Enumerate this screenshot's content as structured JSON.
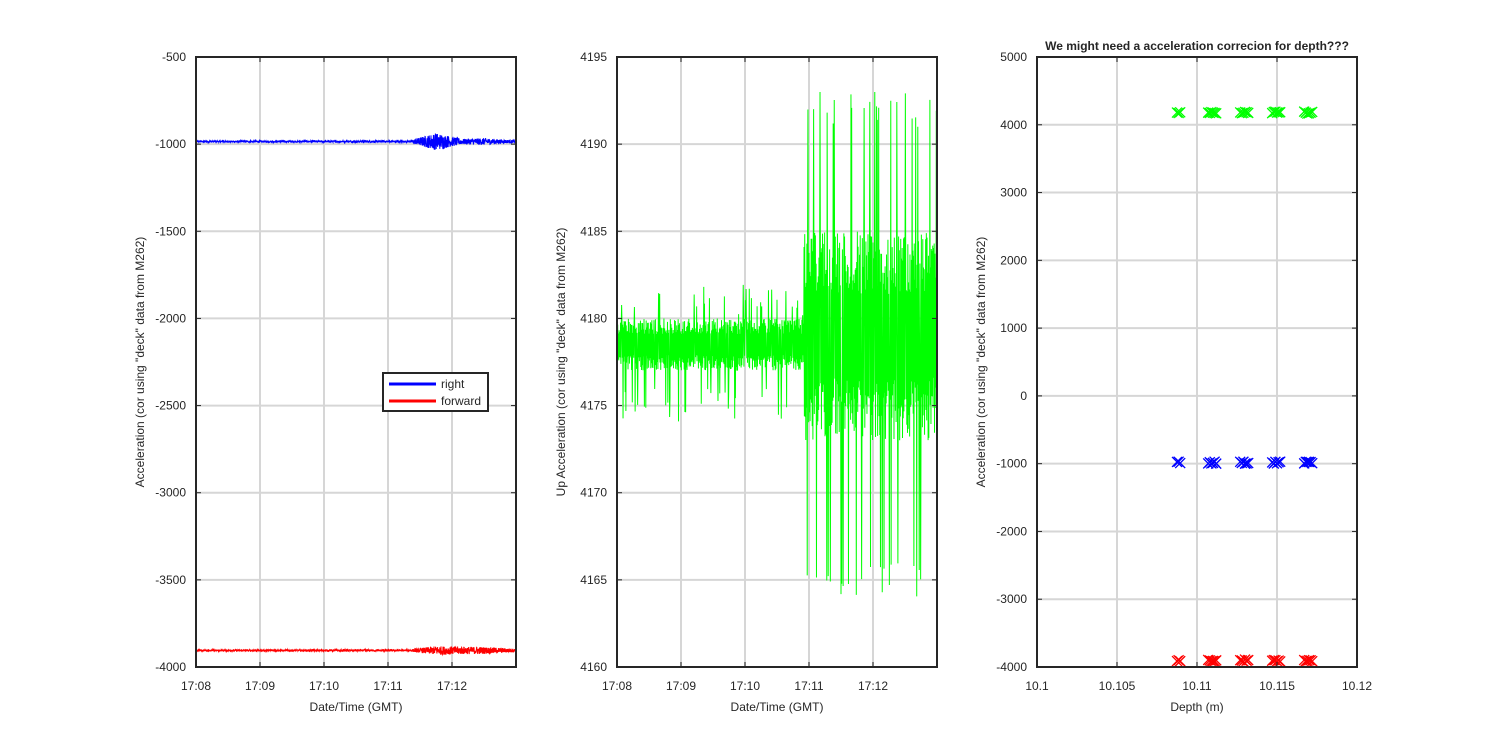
{
  "chart_data": [
    {
      "type": "line",
      "title": "",
      "xlabel": "Date/Time (GMT)",
      "ylabel": "Acceleration (cor using \"deck\" data from M262)",
      "x_ticks": [
        "17:08",
        "17:09",
        "17:10",
        "17:11",
        "17:12"
      ],
      "x_range_minutes": [
        "17:08",
        "17:13"
      ],
      "ylim": [
        -4000,
        -500
      ],
      "y_ticks": [
        -500,
        -1000,
        -1500,
        -2000,
        -2500,
        -3000,
        -3500,
        -4000
      ],
      "grid": true,
      "legend": "center-right",
      "series": [
        {
          "name": "right",
          "color": "#0000ff",
          "baseline": -985,
          "noise_envelope": [
            {
              "time": "17:08",
              "amplitude": 5
            },
            {
              "time": "17:11:20",
              "amplitude": 6
            },
            {
              "time": "17:11:45",
              "amplitude": 50
            },
            {
              "time": "17:12:10",
              "amplitude": 15
            },
            {
              "time": "17:12:30",
              "amplitude": 20
            },
            {
              "time": "17:13",
              "amplitude": 6
            }
          ]
        },
        {
          "name": "forward",
          "color": "#ff0000",
          "baseline": -3905,
          "noise_envelope": [
            {
              "time": "17:08",
              "amplitude": 5
            },
            {
              "time": "17:11:20",
              "amplitude": 6
            },
            {
              "time": "17:11:45",
              "amplitude": 25
            },
            {
              "time": "17:12:30",
              "amplitude": 20
            },
            {
              "time": "17:13",
              "amplitude": 10
            }
          ]
        }
      ]
    },
    {
      "type": "line",
      "title": "",
      "xlabel": "Date/Time (GMT)",
      "ylabel": "Up Acceleration (cor using \"deck\" data from M262)",
      "x_ticks": [
        "17:08",
        "17:09",
        "17:10",
        "17:11",
        "17:12"
      ],
      "x_range_minutes": [
        "17:08",
        "17:13"
      ],
      "ylim": [
        4160,
        4195
      ],
      "y_ticks": [
        4160,
        4165,
        4170,
        4175,
        4180,
        4185,
        4190,
        4195
      ],
      "grid": true,
      "series": [
        {
          "name": "",
          "color": "#00ff00",
          "quantized_levels": [
            4172,
            4174,
            4177,
            4180,
            4182,
            4183,
            4185,
            4187,
            4189,
            4191
          ],
          "segments": [
            {
              "from": "17:08",
              "to": "17:10:55",
              "low": 4177,
              "high": 4180,
              "spike_high": 4182,
              "spike_low": 4174
            },
            {
              "from": "17:10:55",
              "to": "17:13",
              "low": 4173,
              "high": 4185,
              "spike_high": 4193,
              "spike_low": 4164
            }
          ]
        }
      ]
    },
    {
      "type": "scatter",
      "title": "We might need a acceleration correcion for depth???",
      "xlabel": "Depth (m)",
      "ylabel": "Acceleration (cor using \"deck\" data from M262)",
      "xlim": [
        10.1,
        10.12
      ],
      "x_ticks": [
        10.1,
        10.105,
        10.11,
        10.115,
        10.12
      ],
      "ylim": [
        -4000,
        5000
      ],
      "y_ticks": [
        -4000,
        -3000,
        -2000,
        -1000,
        0,
        1000,
        2000,
        3000,
        4000,
        5000
      ],
      "grid": true,
      "marker": "x",
      "series": [
        {
          "name": "",
          "color": "#00ff00",
          "x": [
            10.1089,
            10.111,
            10.113,
            10.115,
            10.117
          ],
          "y": [
            4180,
            4180,
            4180,
            4180,
            4180
          ]
        },
        {
          "name": "",
          "color": "#0000ff",
          "x": [
            10.1089,
            10.111,
            10.113,
            10.115,
            10.117
          ],
          "y": [
            -985,
            -985,
            -985,
            -985,
            -985
          ]
        },
        {
          "name": "",
          "color": "#ff0000",
          "x": [
            10.1089,
            10.111,
            10.113,
            10.115,
            10.117
          ],
          "y": [
            -3905,
            -3905,
            -3905,
            -3905,
            -3905
          ]
        }
      ]
    }
  ]
}
